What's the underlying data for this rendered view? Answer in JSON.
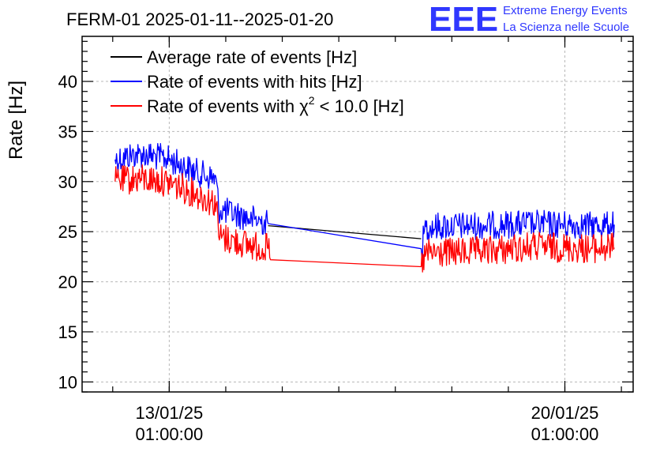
{
  "chart_data": {
    "type": "line",
    "title": "FERM-01 2025-01-11--2025-01-20",
    "ylabel": "Rate [Hz]",
    "xlabel": "",
    "ylim": [
      9,
      44.5
    ],
    "xlim": [
      "2025-01-11 12:00",
      "2025-01-21 06:00"
    ],
    "y_ticks": [
      10,
      15,
      20,
      25,
      30,
      35,
      40
    ],
    "x_ticks": [
      {
        "date": "2025-01-13 01:00",
        "label1": "13/01/25",
        "label2": "01:00:00"
      },
      {
        "date": "2025-01-20 01:00",
        "label1": "20/01/25",
        "label2": "01:00:00"
      }
    ],
    "grid": true,
    "legend_position": "top-left",
    "series": [
      {
        "name": "Average rate of events [Hz]",
        "legend_label_main": "Average rate of events [Hz]",
        "color": "#000000",
        "noise": 0,
        "points": [
          [
            "2025-01-14 19:00",
            25.6
          ],
          [
            "2025-01-17 12:00",
            24.3
          ]
        ]
      },
      {
        "name": "Rate of events with hits [Hz]",
        "legend_label_main": "Rate of events with hits [Hz]",
        "color": "#0000ff",
        "noise": 1.4,
        "points": [
          [
            "2025-01-12 02:00",
            32.2
          ],
          [
            "2025-01-12 12:00",
            32.8
          ],
          [
            "2025-01-13 00:00",
            32.3
          ],
          [
            "2025-01-13 12:00",
            31.0
          ],
          [
            "2025-01-13 21:00",
            30.2
          ],
          [
            "2025-01-13 22:00",
            27.2
          ],
          [
            "2025-01-14 12:00",
            26.3
          ],
          [
            "2025-01-14 19:00",
            25.8
          ],
          [
            "2025-01-17 12:00",
            23.3
          ],
          [
            "2025-01-17 14:00",
            25.5
          ],
          [
            "2025-01-18 12:00",
            25.6
          ],
          [
            "2025-01-19 12:00",
            25.8
          ],
          [
            "2025-01-20 12:00",
            25.6
          ],
          [
            "2025-01-20 22:00",
            25.7
          ]
        ]
      },
      {
        "name": "Rate of events with χ² < 10.0 [Hz]",
        "legend_label_main": "Rate of events with χ",
        "legend_label_sup": "2",
        "legend_label_rest": " < 10.0 [Hz]",
        "color": "#ff0000",
        "noise": 1.5,
        "points": [
          [
            "2025-01-12 02:00",
            30.0
          ],
          [
            "2025-01-12 12:00",
            30.3
          ],
          [
            "2025-01-13 00:00",
            30.0
          ],
          [
            "2025-01-13 12:00",
            28.8
          ],
          [
            "2025-01-13 21:00",
            27.8
          ],
          [
            "2025-01-13 22:00",
            24.5
          ],
          [
            "2025-01-14 12:00",
            23.6
          ],
          [
            "2025-01-14 19:00",
            23.3
          ],
          [
            "2025-01-14 20:00",
            22.2
          ],
          [
            "2025-01-17 12:00",
            21.5
          ],
          [
            "2025-01-17 14:00",
            22.8
          ],
          [
            "2025-01-18 12:00",
            23.0
          ],
          [
            "2025-01-19 12:00",
            23.5
          ],
          [
            "2025-01-20 12:00",
            23.3
          ],
          [
            "2025-01-20 22:00",
            23.4
          ]
        ]
      }
    ]
  },
  "logo": {
    "mark": "EEE",
    "line1": "Extreme Energy Events",
    "line2": "La Scienza nelle Scuole",
    "color": "#2f37ff"
  }
}
